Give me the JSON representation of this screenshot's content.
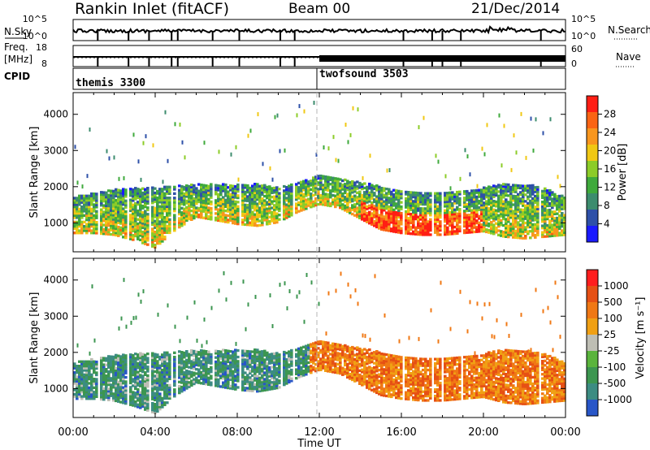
{
  "header": {
    "title": "Rankin Inlet (fitACF)",
    "beam": "Beam 00",
    "date": "21/Dec/2014"
  },
  "nsky_panel": {
    "left_label": "N.Sky",
    "right_label": "N.Search",
    "left_ticks": [
      "10^5",
      "10^0"
    ],
    "right_ticks": [
      "10^5",
      "10^0"
    ]
  },
  "freq_panel": {
    "left_label_1": "Freq.",
    "left_label_2": "[MHz]",
    "right_label": "Nave",
    "left_ticks": [
      "18",
      "8"
    ],
    "right_ticks": [
      "60",
      "0"
    ]
  },
  "cpid_panel": {
    "label": "CPID",
    "modes": [
      {
        "name": "themis 3300",
        "start_hour": 0
      },
      {
        "name": "twofsound 3503",
        "start_hour": 12
      }
    ]
  },
  "colors": {
    "power_scale": [
      "#1a1aff",
      "#2e50a8",
      "#3c8c6e",
      "#3faa3c",
      "#8ccc28",
      "#f0c814",
      "#f8961e",
      "#fa6414",
      "#ff1e14"
    ],
    "velocity_scale": [
      "#2856c8",
      "#3c8c82",
      "#3c9650",
      "#5ab43c",
      "#bebeb4",
      "#f0a014",
      "#f07814",
      "#e65014",
      "#ff1e1e"
    ]
  },
  "chart_data": [
    {
      "type": "heatmap",
      "name": "power",
      "xlabel": "",
      "ylabel": "Slant Range [km]",
      "x_ticks": [
        "00:00",
        "04:00",
        "08:00",
        "12:00",
        "16:00",
        "20:00",
        "00:00"
      ],
      "xlim": [
        0,
        24
      ],
      "y_ticks": [
        1000,
        2000,
        3000,
        4000
      ],
      "ylim": [
        200,
        4600
      ],
      "colorbar": {
        "label": "Power [dB]",
        "ticks": [
          28,
          24,
          20,
          16,
          12,
          8,
          4
        ],
        "range": [
          0,
          32
        ]
      },
      "echo_band_lower_km": [
        700,
        700,
        650,
        500,
        300,
        800,
        1150,
        1050,
        950,
        900,
        1000,
        1300,
        1500,
        1400,
        1100,
        800,
        700,
        650,
        650,
        700,
        750,
        600,
        550,
        600,
        650
      ],
      "echo_band_upper_km": [
        1700,
        1800,
        1900,
        1950,
        1950,
        2000,
        2050,
        2050,
        2050,
        2050,
        1950,
        2100,
        2300,
        2200,
        2100,
        2000,
        1900,
        1800,
        1800,
        1900,
        1950,
        2050,
        2050,
        1950,
        1700
      ],
      "scan_gap_hours": [
        1.2,
        2.7,
        3.7,
        4.8,
        5.1,
        6.8,
        8.1,
        10.1,
        10.8,
        16.1,
        17.5,
        18.0,
        18.9,
        22.8
      ]
    },
    {
      "type": "heatmap",
      "name": "velocity",
      "xlabel": "Time UT",
      "ylabel": "Slant Range [km]",
      "x_ticks": [
        "00:00",
        "04:00",
        "08:00",
        "12:00",
        "16:00",
        "20:00",
        "00:00"
      ],
      "xlim": [
        0,
        24
      ],
      "y_ticks": [
        1000,
        2000,
        3000,
        4000
      ],
      "ylim": [
        200,
        4600
      ],
      "colorbar": {
        "label": "Velocity [m s⁻¹]",
        "ticks": [
          1000,
          500,
          100,
          25,
          -25,
          -100,
          -500,
          -1000
        ]
      },
      "echo_band_lower_km": [
        700,
        700,
        650,
        500,
        300,
        800,
        1150,
        1050,
        950,
        900,
        1000,
        1300,
        1500,
        1400,
        1100,
        800,
        700,
        650,
        650,
        700,
        750,
        600,
        550,
        600,
        650
      ],
      "echo_band_upper_km": [
        1700,
        1800,
        1900,
        1950,
        1950,
        2000,
        2050,
        2050,
        2050,
        2050,
        1950,
        2100,
        2300,
        2200,
        2100,
        2000,
        1900,
        1800,
        1800,
        1900,
        1950,
        2050,
        2050,
        1950,
        1700
      ],
      "scan_gap_hours": [
        1.2,
        2.7,
        3.7,
        4.8,
        5.1,
        6.8,
        8.1,
        10.1,
        10.8,
        16.1,
        17.5,
        18.0,
        18.9,
        22.8
      ]
    }
  ]
}
